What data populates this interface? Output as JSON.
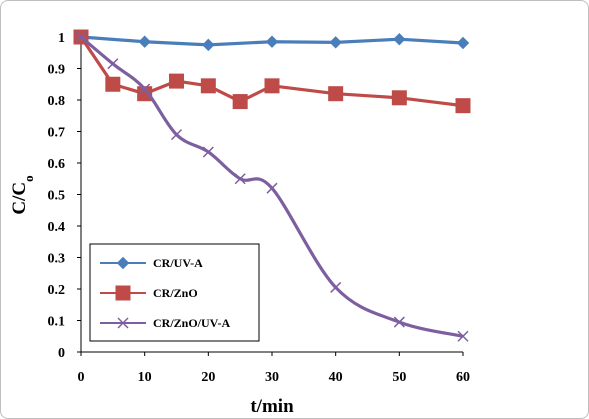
{
  "chart_data": {
    "type": "line",
    "xlabel": "t/min",
    "ylabel": {
      "main": "C/C",
      "subscript": "o"
    },
    "xlim": [
      0,
      60
    ],
    "ylim": [
      0,
      1
    ],
    "x_ticks": [
      0,
      10,
      20,
      30,
      40,
      50,
      60
    ],
    "y_ticks": [
      0,
      0.1,
      0.2,
      0.3,
      0.4,
      0.5,
      0.6,
      0.7,
      0.8,
      0.9,
      1
    ],
    "y_tick_labels": [
      "0",
      "0.1",
      "0.2",
      "0.3",
      "0.4",
      "0.5",
      "0.6",
      "0.7",
      "0.8",
      "0.9",
      "1"
    ],
    "grid": false,
    "legend_position": "bottom-left",
    "series": [
      {
        "name": "CR/UV-A",
        "color": "#4a7ebb",
        "marker": "diamond",
        "smooth": false,
        "x": [
          0,
          10,
          20,
          30,
          40,
          50,
          60
        ],
        "y": [
          1.0,
          0.985,
          0.975,
          0.985,
          0.983,
          0.993,
          0.981
        ]
      },
      {
        "name": "CR/ZnO",
        "color": "#be4b48",
        "marker": "square",
        "smooth": false,
        "x": [
          0,
          5,
          10,
          15,
          20,
          25,
          30,
          40,
          50,
          60
        ],
        "y": [
          1.0,
          0.85,
          0.82,
          0.86,
          0.845,
          0.795,
          0.845,
          0.82,
          0.807,
          0.782
        ]
      },
      {
        "name": "CR/ZnO/UV-A",
        "color": "#7d5fa0",
        "marker": "x",
        "smooth": true,
        "x": [
          0,
          5,
          10,
          15,
          20,
          25,
          30,
          40,
          50,
          60
        ],
        "y": [
          1.0,
          0.915,
          0.835,
          0.69,
          0.635,
          0.55,
          0.52,
          0.205,
          0.095,
          0.05
        ]
      }
    ]
  }
}
